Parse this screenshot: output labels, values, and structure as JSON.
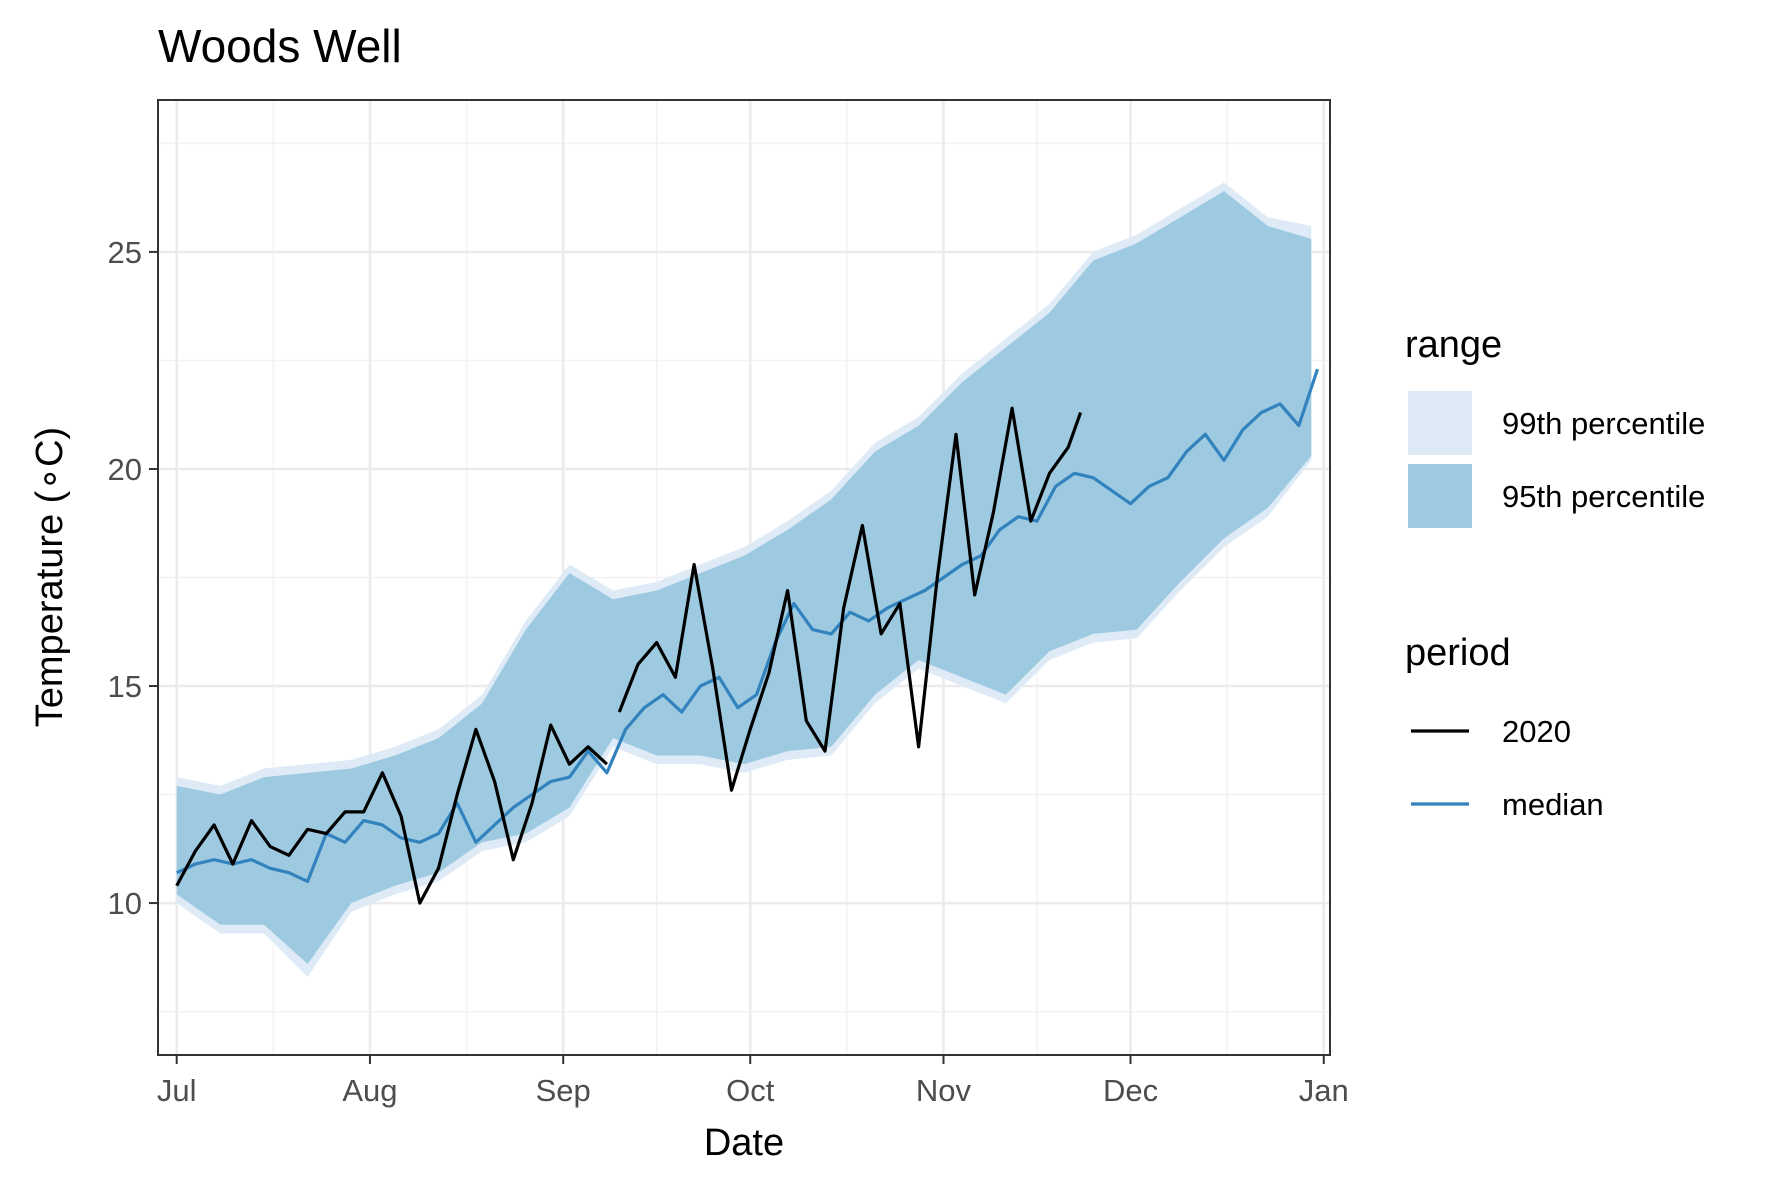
{
  "chart_data": {
    "type": "line",
    "title": "Woods Well",
    "xlabel": "Date",
    "ylabel": "Temperature (∘C)",
    "x_ticks": [
      "Jul",
      "Aug",
      "Sep",
      "Oct",
      "Nov",
      "Dec",
      "Jan"
    ],
    "y_ticks": [
      "10",
      "15",
      "20",
      "25"
    ],
    "xlim": [
      "2020-06-28",
      "2021-01-02"
    ],
    "ylim": [
      6.5,
      28.5
    ],
    "grid": true,
    "legend_position": "right",
    "legends": [
      {
        "title": "range",
        "items": [
          {
            "label": "99th percentile",
            "color": "#deebf7"
          },
          {
            "label": "95th percentile",
            "color": "#9ecae1"
          }
        ]
      },
      {
        "title": "period",
        "items": [
          {
            "label": "2020",
            "color": "#000000"
          },
          {
            "label": "median",
            "color": "#3182bd"
          }
        ]
      }
    ],
    "ribbons": [
      {
        "name": "99th percentile",
        "color": "#deebf7",
        "x": [
          "2020-07-01",
          "2020-07-08",
          "2020-07-15",
          "2020-07-22",
          "2020-07-29",
          "2020-08-05",
          "2020-08-12",
          "2020-08-19",
          "2020-08-26",
          "2020-09-02",
          "2020-09-09",
          "2020-09-16",
          "2020-09-23",
          "2020-09-30",
          "2020-10-07",
          "2020-10-14",
          "2020-10-21",
          "2020-10-28",
          "2020-11-04",
          "2020-11-11",
          "2020-11-18",
          "2020-11-25",
          "2020-12-02",
          "2020-12-09",
          "2020-12-16",
          "2020-12-23",
          "2020-12-30"
        ],
        "lower": [
          10.0,
          9.3,
          9.3,
          8.3,
          9.8,
          10.2,
          10.5,
          11.2,
          11.4,
          12.0,
          13.6,
          13.2,
          13.2,
          13.0,
          13.3,
          13.4,
          14.6,
          15.4,
          15.0,
          14.6,
          15.6,
          16.0,
          16.1,
          17.2,
          18.2,
          18.9,
          20.2
        ],
        "upper": [
          12.9,
          12.7,
          13.1,
          13.2,
          13.3,
          13.6,
          14.0,
          14.8,
          16.5,
          17.8,
          17.2,
          17.4,
          17.8,
          18.2,
          18.8,
          19.5,
          20.6,
          21.2,
          22.2,
          23.0,
          23.8,
          25.0,
          25.4,
          26.0,
          26.6,
          25.8,
          25.6
        ]
      },
      {
        "name": "95th percentile",
        "color": "#9ecae1",
        "x": [
          "2020-07-01",
          "2020-07-08",
          "2020-07-15",
          "2020-07-22",
          "2020-07-29",
          "2020-08-05",
          "2020-08-12",
          "2020-08-19",
          "2020-08-26",
          "2020-09-02",
          "2020-09-09",
          "2020-09-16",
          "2020-09-23",
          "2020-09-30",
          "2020-10-07",
          "2020-10-14",
          "2020-10-21",
          "2020-10-28",
          "2020-11-04",
          "2020-11-11",
          "2020-11-18",
          "2020-11-25",
          "2020-12-02",
          "2020-12-09",
          "2020-12-16",
          "2020-12-23",
          "2020-12-30"
        ],
        "lower": [
          10.2,
          9.5,
          9.5,
          8.6,
          10.0,
          10.4,
          10.7,
          11.4,
          11.6,
          12.2,
          13.8,
          13.4,
          13.4,
          13.2,
          13.5,
          13.6,
          14.8,
          15.6,
          15.2,
          14.8,
          15.8,
          16.2,
          16.3,
          17.4,
          18.4,
          19.1,
          20.3
        ],
        "upper": [
          12.7,
          12.5,
          12.9,
          13.0,
          13.1,
          13.4,
          13.8,
          14.6,
          16.3,
          17.6,
          17.0,
          17.2,
          17.6,
          18.0,
          18.6,
          19.3,
          20.4,
          21.0,
          22.0,
          22.8,
          23.6,
          24.8,
          25.2,
          25.8,
          26.4,
          25.6,
          25.3
        ]
      }
    ],
    "series": [
      {
        "name": "2020",
        "color": "#000000",
        "x": [
          "2020-07-01",
          "2020-07-04",
          "2020-07-07",
          "2020-07-10",
          "2020-07-13",
          "2020-07-16",
          "2020-07-19",
          "2020-07-22",
          "2020-07-25",
          "2020-07-28",
          "2020-07-31",
          "2020-08-03",
          "2020-08-06",
          "2020-08-09",
          "2020-08-12",
          "2020-08-15",
          "2020-08-18",
          "2020-08-21",
          "2020-08-24",
          "2020-08-27",
          "2020-08-30",
          "2020-09-02",
          "2020-09-05",
          "2020-09-08",
          null,
          "2020-09-10",
          "2020-09-13",
          "2020-09-16",
          "2020-09-19",
          "2020-09-22",
          "2020-09-25",
          "2020-09-28",
          "2020-10-01",
          "2020-10-04",
          "2020-10-07",
          "2020-10-10",
          "2020-10-13",
          "2020-10-16",
          "2020-10-19",
          "2020-10-22",
          "2020-10-25",
          "2020-10-28",
          "2020-10-31",
          "2020-11-03",
          "2020-11-06",
          "2020-11-09",
          "2020-11-12",
          "2020-11-15",
          "2020-11-18",
          "2020-11-21",
          "2020-11-23"
        ],
        "y": [
          10.4,
          11.2,
          11.8,
          10.9,
          11.9,
          11.3,
          11.1,
          11.7,
          11.6,
          12.1,
          12.1,
          13.0,
          12.0,
          10.0,
          10.8,
          12.5,
          14.0,
          12.8,
          11.0,
          12.3,
          14.1,
          13.2,
          13.6,
          13.2,
          null,
          14.4,
          15.5,
          16.0,
          15.2,
          17.8,
          15.4,
          12.6,
          14.0,
          15.3,
          17.2,
          14.2,
          13.5,
          16.8,
          18.7,
          16.2,
          16.9,
          13.6,
          17.5,
          20.8,
          17.1,
          19.0,
          21.4,
          18.8,
          19.9,
          20.5,
          21.3
        ]
      },
      {
        "name": "median",
        "color": "#3182bd",
        "x": [
          "2020-07-01",
          "2020-07-04",
          "2020-07-07",
          "2020-07-10",
          "2020-07-13",
          "2020-07-16",
          "2020-07-19",
          "2020-07-22",
          "2020-07-25",
          "2020-07-28",
          "2020-07-31",
          "2020-08-03",
          "2020-08-06",
          "2020-08-09",
          "2020-08-12",
          "2020-08-15",
          "2020-08-18",
          "2020-08-21",
          "2020-08-24",
          "2020-08-27",
          "2020-08-30",
          "2020-09-02",
          "2020-09-05",
          "2020-09-08",
          "2020-09-11",
          "2020-09-14",
          "2020-09-17",
          "2020-09-20",
          "2020-09-23",
          "2020-09-26",
          "2020-09-29",
          "2020-10-02",
          "2020-10-05",
          "2020-10-08",
          "2020-10-11",
          "2020-10-14",
          "2020-10-17",
          "2020-10-20",
          "2020-10-23",
          "2020-10-26",
          "2020-10-29",
          "2020-11-01",
          "2020-11-04",
          "2020-11-07",
          "2020-11-10",
          "2020-11-13",
          "2020-11-16",
          "2020-11-19",
          "2020-11-22",
          "2020-11-25",
          "2020-11-28",
          "2020-12-01",
          "2020-12-04",
          "2020-12-07",
          "2020-12-10",
          "2020-12-13",
          "2020-12-16",
          "2020-12-19",
          "2020-12-22",
          "2020-12-25",
          "2020-12-28",
          "2020-12-31"
        ],
        "y": [
          10.7,
          10.9,
          11.0,
          10.9,
          11.0,
          10.8,
          10.7,
          10.5,
          11.6,
          11.4,
          11.9,
          11.8,
          11.5,
          11.4,
          11.6,
          12.3,
          11.4,
          11.8,
          12.2,
          12.5,
          12.8,
          12.9,
          13.5,
          13.0,
          14.0,
          14.5,
          14.8,
          14.4,
          15.0,
          15.2,
          14.5,
          14.8,
          16.0,
          16.9,
          16.3,
          16.2,
          16.7,
          16.5,
          16.8,
          17.0,
          17.2,
          17.5,
          17.8,
          18.0,
          18.6,
          18.9,
          18.8,
          19.6,
          19.9,
          19.8,
          19.5,
          19.2,
          19.6,
          19.8,
          20.4,
          20.8,
          20.2,
          20.9,
          21.3,
          21.5,
          21.0,
          22.3
        ]
      }
    ]
  }
}
